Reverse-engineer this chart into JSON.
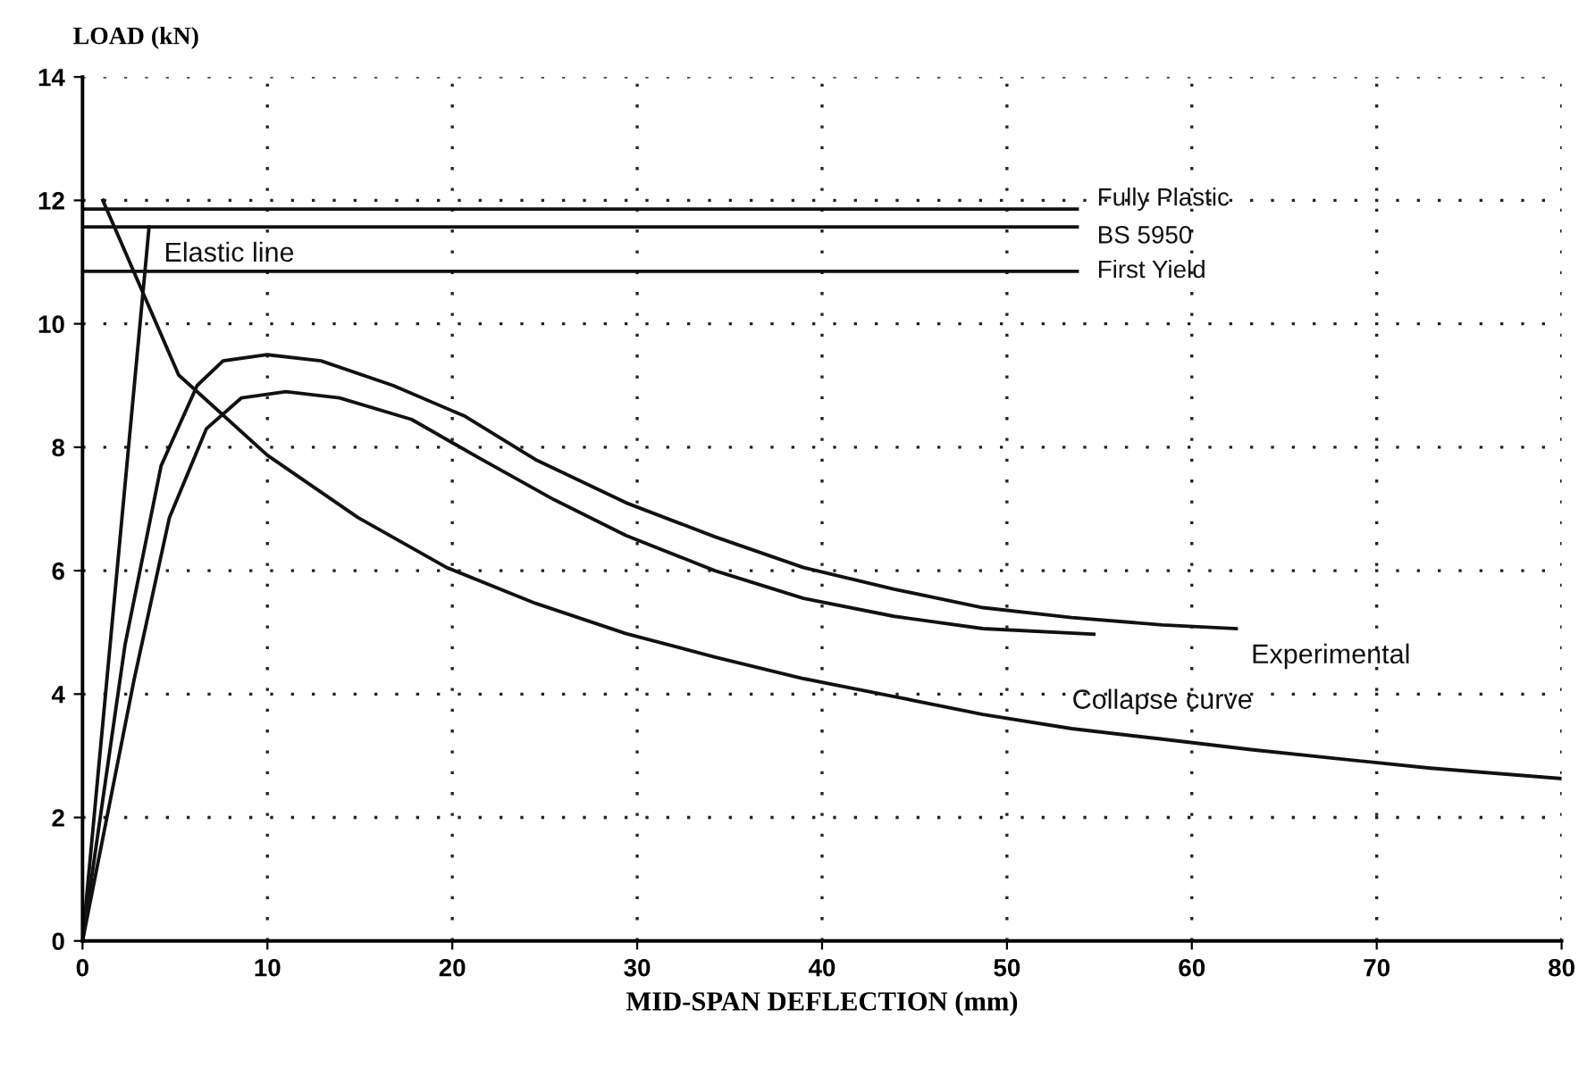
{
  "chart_data": {
    "type": "line",
    "xlabel": "MID-SPAN DEFLECTION (mm)",
    "ylabel": "LOAD (kN)",
    "xlim": [
      0,
      80
    ],
    "xticks": [
      0,
      10,
      20,
      30,
      40,
      50,
      60,
      70,
      80
    ],
    "ylim": [
      0,
      14
    ],
    "yticks": [
      0,
      2,
      4,
      6,
      8,
      10,
      12,
      14
    ],
    "grid": true,
    "line_style": "solid",
    "series": [
      {
        "name": "Fully Plastic",
        "color": "#111111",
        "x": [
          0,
          53.8
        ],
        "values": [
          11.86,
          11.86
        ]
      },
      {
        "name": "BS 5950",
        "color": "#111111",
        "x": [
          0,
          53.8
        ],
        "values": [
          11.57,
          11.57
        ]
      },
      {
        "name": "First Yield",
        "color": "#111111",
        "x": [
          0,
          53.8
        ],
        "values": [
          10.85,
          10.85
        ]
      },
      {
        "name": "Elastic line",
        "color": "#111111",
        "x": [
          0,
          3.6
        ],
        "values": [
          0,
          11.57
        ]
      },
      {
        "name": "Collapse curve",
        "color": "#111111",
        "x": [
          1.1,
          5.2,
          10,
          14.9,
          19.7,
          24.5,
          29.4,
          34.2,
          39,
          43.9,
          48.7,
          53.5,
          58.4,
          63.2,
          68,
          72.9,
          80
        ],
        "values": [
          12.0,
          9.17,
          7.87,
          6.86,
          6.05,
          5.47,
          4.98,
          4.6,
          4.25,
          3.96,
          3.67,
          3.44,
          3.27,
          3.1,
          2.95,
          2.8,
          2.63
        ]
      },
      {
        "name": "Experimental",
        "color": "#111111",
        "x": [
          0,
          2.3,
          4.25,
          6.2,
          7.6,
          10,
          12.9,
          16.8,
          20.7,
          24.5,
          29.4,
          34.2,
          39,
          43.9,
          48.7,
          53.5,
          58.4,
          62.4
        ],
        "values": [
          0,
          4.8,
          7.7,
          9.0,
          9.4,
          9.5,
          9.4,
          9.0,
          8.5,
          7.8,
          7.1,
          6.55,
          6.05,
          5.7,
          5.4,
          5.24,
          5.12,
          5.06
        ]
      },
      {
        "color": "#111111",
        "x": [
          0,
          2.8,
          4.7,
          6.7,
          8.6,
          11,
          13.9,
          17.8,
          21.6,
          25.5,
          29.4,
          34.2,
          39,
          43.9,
          48.7,
          54.7
        ],
        "values": [
          0,
          4.25,
          6.86,
          8.3,
          8.8,
          8.9,
          8.8,
          8.45,
          7.8,
          7.15,
          6.57,
          6.0,
          5.55,
          5.26,
          5.06,
          4.97
        ]
      }
    ]
  }
}
